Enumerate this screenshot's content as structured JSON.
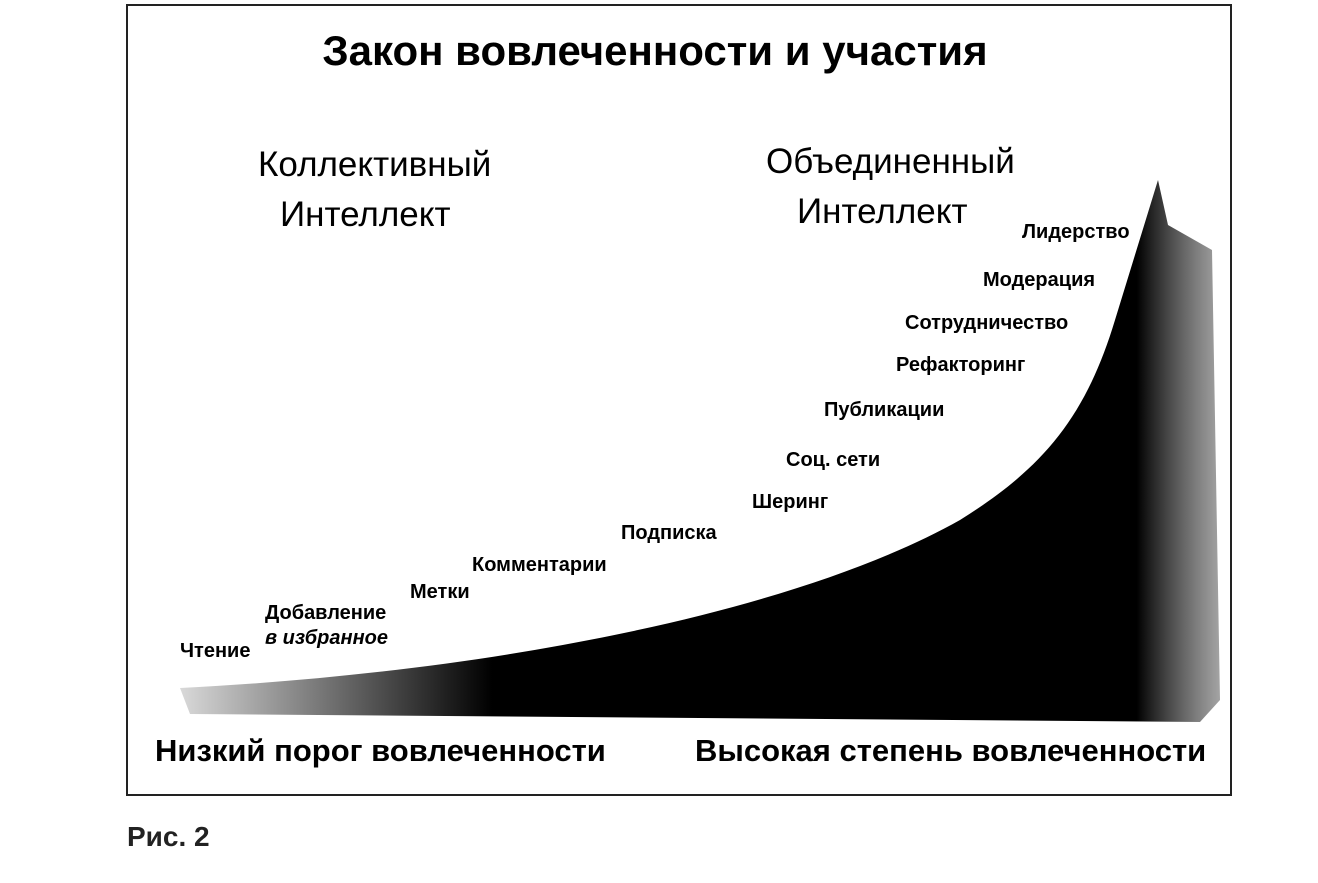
{
  "title": "Закон вовлеченности и участия",
  "left_heading": [
    "Коллективный",
    "Интеллект"
  ],
  "right_heading": [
    "Объединенный",
    "Интеллект"
  ],
  "stages": [
    [
      "Чтение"
    ],
    [
      "Добавление",
      "в избранное"
    ],
    [
      "Метки"
    ],
    [
      "Комментарии"
    ],
    [
      "Подписка"
    ],
    [
      "Шеринг"
    ],
    [
      "Соц. сети"
    ],
    [
      "Публикации"
    ],
    [
      "Рефакторинг"
    ],
    [
      "Сотрудничество"
    ],
    [
      "Модерация"
    ],
    [
      "Лидерство"
    ]
  ],
  "bottom_left": "Низкий порог вовлеченности",
  "bottom_right": "Высокая степень вовлеченности",
  "caption": "Рис. 2"
}
